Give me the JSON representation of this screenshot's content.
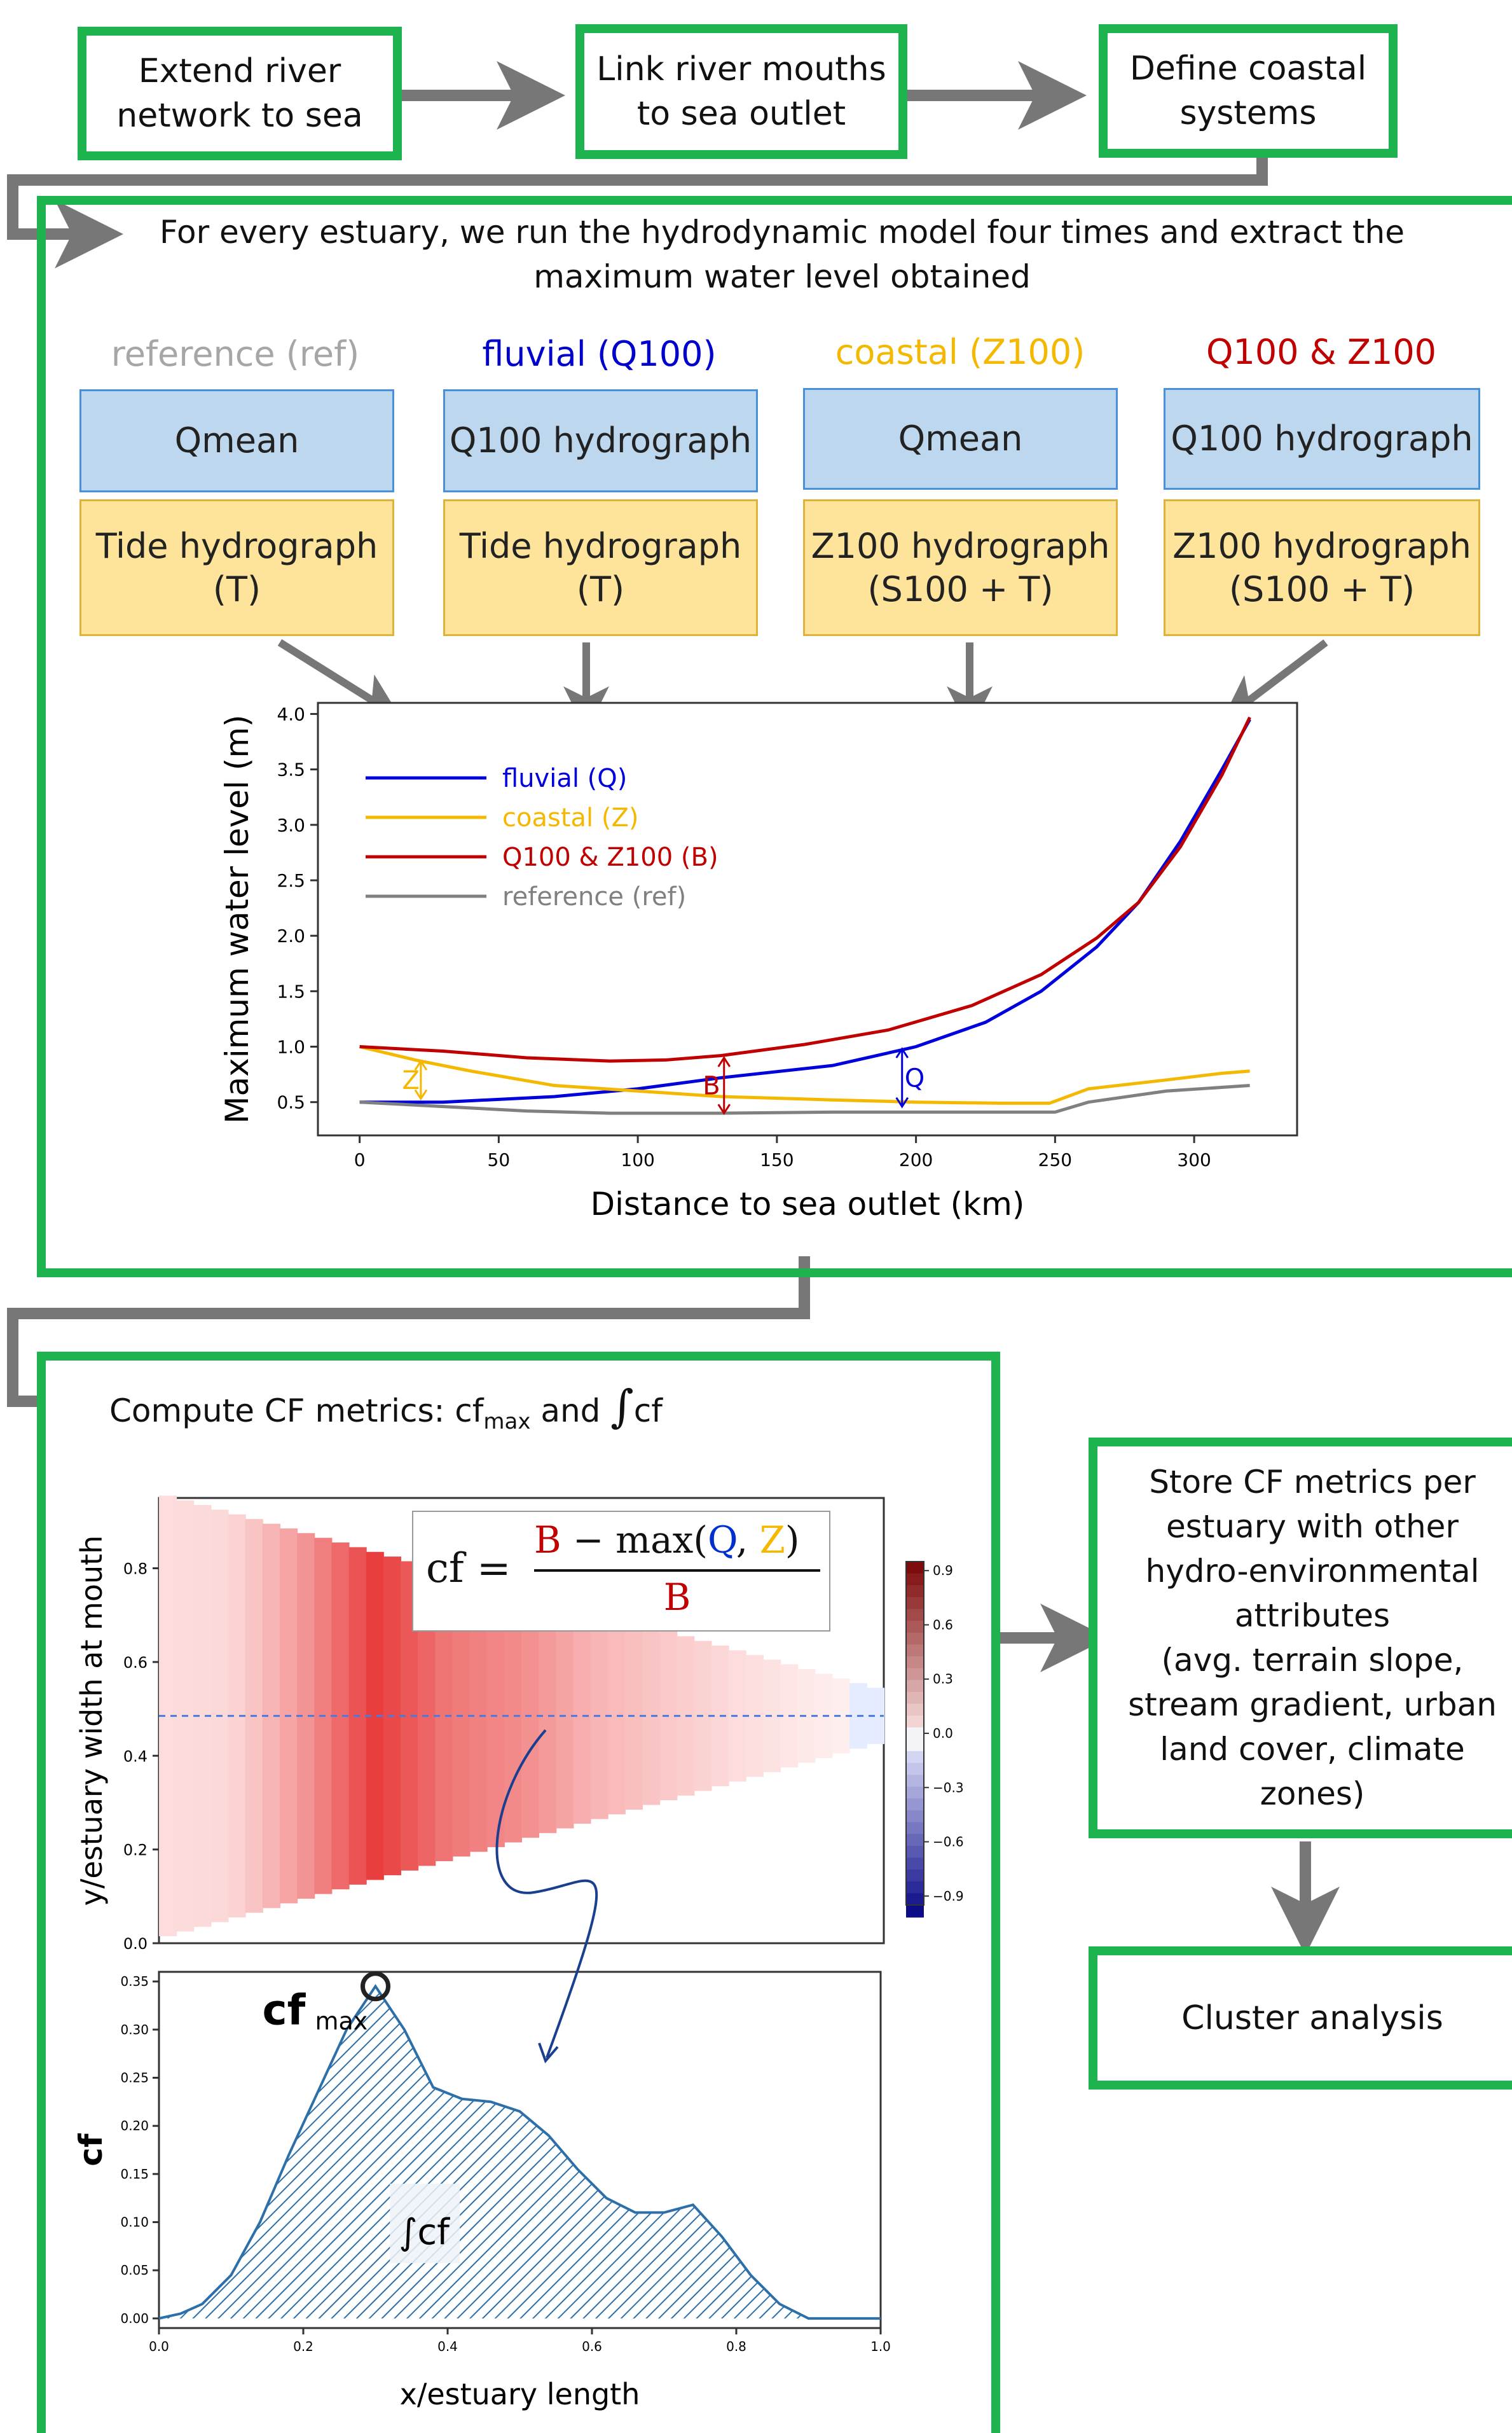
{
  "workflow": {
    "step1": "Extend river\nnetwork to sea",
    "step2": "Link river mouths\nto sea outlet",
    "step3": "Define coastal\nsystems",
    "model_text": "For every estuary, we run the hydrodynamic model four times and extract the\nmaximum water level obtained",
    "compute_text": "Compute CF metrics: cf",
    "compute_max": "max",
    "compute_and": " and ",
    "compute_int": "∫",
    "compute_cf": "cf",
    "store_text": "Store CF metrics per\nestuary with other\nhydro-environmental\nattributes\n(avg. terrain slope,\nstream gradient, urban\nland cover, climate\nzones)",
    "cluster_text": "Cluster analysis"
  },
  "scenarios": [
    {
      "title": "reference (ref)",
      "color": "#a6a6a6",
      "top": "Qmean",
      "bottom": "Tide hydrograph\n(T)"
    },
    {
      "title": "fluvial (Q100)",
      "color": "#0000cc",
      "top": "Q100 hydrograph",
      "bottom": "Tide hydrograph\n(T)"
    },
    {
      "title": "coastal (Z100)",
      "color": "#f5b800",
      "top": "Qmean",
      "bottom": "Z100 hydrograph\n(S100 + T)"
    },
    {
      "title": "Q100 & Z100",
      "color": "#c00000",
      "top": "Q100 hydrograph",
      "bottom": "Z100 hydrograph\n(S100 + T)"
    }
  ],
  "chart_data": [
    {
      "type": "line",
      "xlabel": "Distance to sea outlet (km)",
      "ylabel": "Maximum water level (m)",
      "xlim": [
        -15,
        337
      ],
      "ylim": [
        0.2,
        4.1
      ],
      "xticks": [
        0,
        50,
        100,
        150,
        200,
        250,
        300
      ],
      "yticks": [
        0.5,
        1.0,
        1.5,
        2.0,
        2.5,
        3.0,
        3.5,
        4.0
      ],
      "legend": "top-left",
      "series": [
        {
          "name": "fluvial (Q)",
          "color": "#0000dd",
          "x": [
            0,
            30,
            70,
            100,
            130,
            170,
            200,
            225,
            245,
            265,
            280,
            295,
            310,
            320
          ],
          "y": [
            0.5,
            0.5,
            0.55,
            0.62,
            0.72,
            0.83,
            1.0,
            1.22,
            1.5,
            1.9,
            2.3,
            2.85,
            3.5,
            3.95
          ]
        },
        {
          "name": "coastal (Z)",
          "color": "#f5b800",
          "x": [
            0,
            20,
            40,
            70,
            100,
            130,
            170,
            200,
            230,
            248,
            262,
            290,
            310,
            320
          ],
          "y": [
            1.0,
            0.88,
            0.78,
            0.65,
            0.6,
            0.55,
            0.52,
            0.5,
            0.49,
            0.49,
            0.62,
            0.7,
            0.76,
            0.78
          ]
        },
        {
          "name": "Q100 & Z100 (B)",
          "color": "#c00000",
          "x": [
            0,
            30,
            60,
            90,
            110,
            130,
            160,
            190,
            220,
            245,
            265,
            280,
            295,
            310,
            320
          ],
          "y": [
            1.0,
            0.96,
            0.9,
            0.87,
            0.88,
            0.92,
            1.02,
            1.15,
            1.37,
            1.65,
            1.98,
            2.3,
            2.8,
            3.45,
            3.97
          ]
        },
        {
          "name": "reference (ref)",
          "color": "#808080",
          "x": [
            0,
            30,
            60,
            90,
            130,
            170,
            210,
            250,
            262,
            290,
            320
          ],
          "y": [
            0.5,
            0.46,
            0.42,
            0.4,
            0.4,
            0.41,
            0.41,
            0.41,
            0.5,
            0.6,
            0.65
          ]
        }
      ],
      "annotations": [
        "Z",
        "B",
        "Q"
      ]
    },
    {
      "type": "heatmap",
      "ylabel": "y/estuary width at mouth",
      "yticks": [
        0.0,
        0.2,
        0.4,
        0.6,
        0.8
      ],
      "colorbar_ticks": [
        0.9,
        0.6,
        0.3,
        0.0,
        -0.3,
        -0.6,
        -0.9
      ],
      "colorbar_tick_labels": [
        "0.9",
        "0.6",
        "0.3",
        "0.0",
        "−0.3",
        "−0.6",
        "−0.9"
      ],
      "formula": {
        "lhs": "cf =",
        "num_b": "B",
        "num_minus": " − max(",
        "num_q": "Q",
        "num_comma": ", ",
        "num_z": "Z",
        "num_close": ")",
        "den": "B"
      }
    },
    {
      "type": "area",
      "xlabel": "x/estuary length",
      "ylabel": "cf",
      "xlim": [
        0.0,
        1.0
      ],
      "ylim": [
        -0.01,
        0.36
      ],
      "xticks": [
        0.0,
        0.2,
        0.4,
        0.6,
        0.8,
        1.0
      ],
      "yticks": [
        0.0,
        0.05,
        0.1,
        0.15,
        0.2,
        0.25,
        0.3,
        0.35
      ],
      "x": [
        0.0,
        0.03,
        0.06,
        0.1,
        0.14,
        0.18,
        0.22,
        0.26,
        0.3,
        0.34,
        0.38,
        0.42,
        0.46,
        0.5,
        0.54,
        0.58,
        0.62,
        0.66,
        0.7,
        0.74,
        0.78,
        0.82,
        0.86,
        0.9,
        0.94,
        1.0
      ],
      "y": [
        0.0,
        0.005,
        0.015,
        0.045,
        0.1,
        0.17,
        0.235,
        0.3,
        0.345,
        0.3,
        0.24,
        0.228,
        0.225,
        0.215,
        0.19,
        0.155,
        0.125,
        0.11,
        0.11,
        0.118,
        0.085,
        0.045,
        0.015,
        0.0,
        0.0,
        0.0
      ],
      "cf_max_label": "cf",
      "cf_max_sub": "max",
      "integral_label": "∫cf"
    }
  ]
}
